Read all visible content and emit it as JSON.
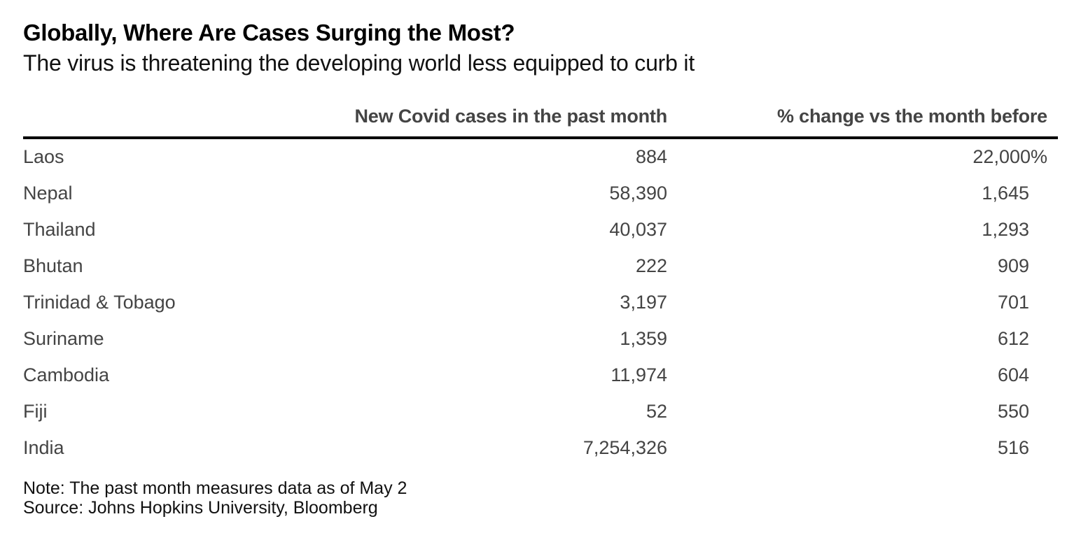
{
  "title": "Globally, Where Are Cases Surging the Most?",
  "subtitle": "The virus is threatening the developing world less equipped to curb it",
  "chart_data": {
    "type": "table",
    "title": "Globally, Where Are Cases Surging the Most?",
    "subtitle": "The virus is threatening the developing world less equipped to curb it",
    "columns": [
      "",
      "New Covid cases in the past month",
      "% change vs the month before"
    ],
    "rows": [
      {
        "country": "Laos",
        "cases": "884",
        "change": "22,000%"
      },
      {
        "country": "Nepal",
        "cases": "58,390",
        "change": "1,645"
      },
      {
        "country": "Thailand",
        "cases": "40,037",
        "change": "1,293"
      },
      {
        "country": "Bhutan",
        "cases": "222",
        "change": "909"
      },
      {
        "country": "Trinidad & Tobago",
        "cases": "3,197",
        "change": "701"
      },
      {
        "country": "Suriname",
        "cases": "1,359",
        "change": "612"
      },
      {
        "country": "Cambodia",
        "cases": "11,974",
        "change": "604"
      },
      {
        "country": "Fiji",
        "cases": "52",
        "change": "550"
      },
      {
        "country": "India",
        "cases": "7,254,326",
        "change": "516"
      }
    ]
  },
  "notes": {
    "note": "Note: The past month measures data as of May 2",
    "source": "Source: Johns Hopkins University, Bloomberg"
  }
}
